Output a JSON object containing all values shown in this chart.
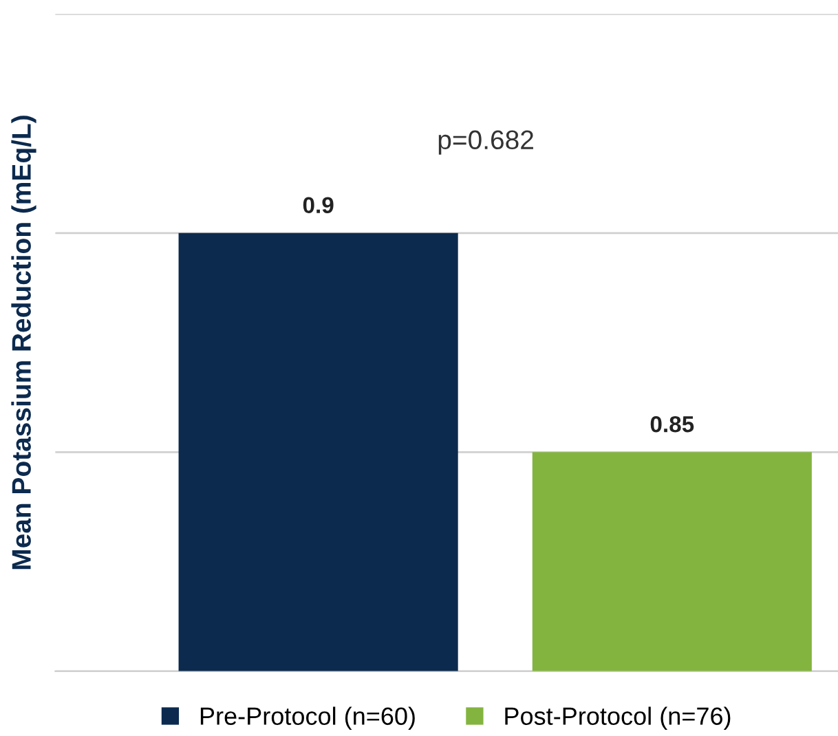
{
  "chart_data": {
    "type": "bar",
    "ylabel": "Mean Potassium Reduction (mEq/L)",
    "categories": [
      null
    ],
    "series": [
      {
        "name": "Pre-Protocol (n=60)",
        "color": "#0c2a4e",
        "values": [
          0.9
        ]
      },
      {
        "name": "Post-Protocol (n=76)",
        "color": "#84b440",
        "values": [
          0.85
        ]
      }
    ],
    "ylim": [
      0.8,
      0.95
    ],
    "yticks": [
      {
        "value": 0.8,
        "label": null
      },
      {
        "value": 0.85,
        "label": null
      },
      {
        "value": 0.9,
        "label": null
      },
      {
        "value": 0.95,
        "label": null
      }
    ],
    "tick_labels": false,
    "grid": "y",
    "data_labels": true,
    "legend": "bottom",
    "annotations": [
      "p=0.682"
    ]
  }
}
